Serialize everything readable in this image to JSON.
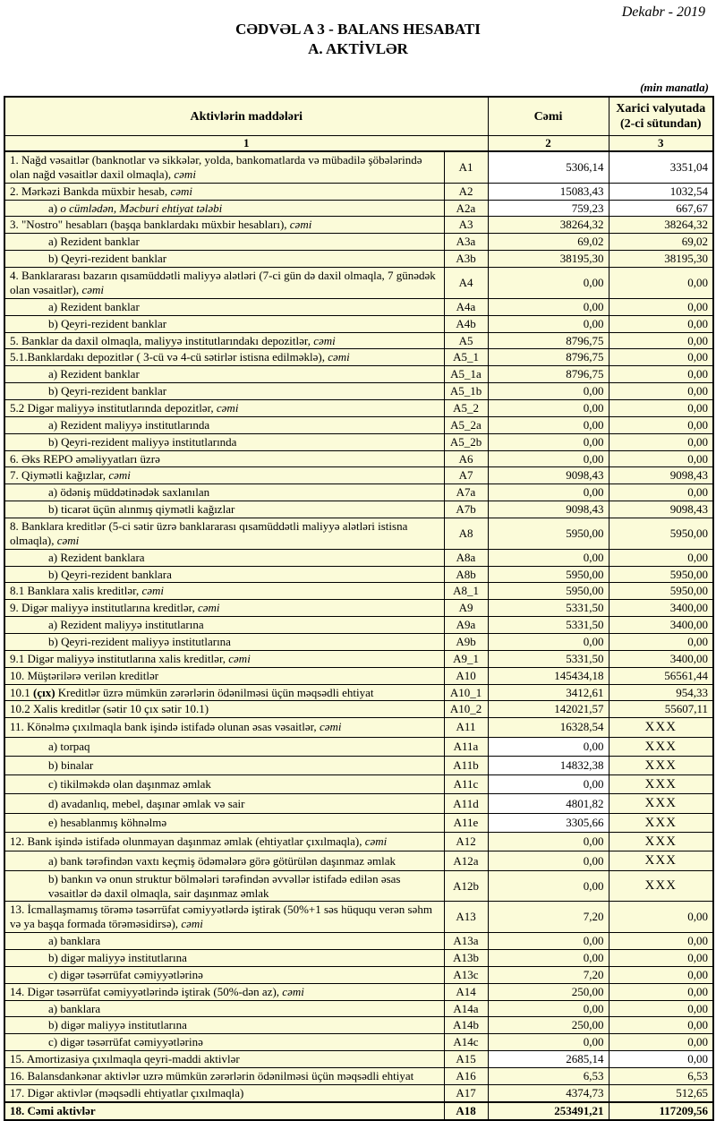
{
  "header": {
    "date": "Dekabr - 2019",
    "title_line1": "CƏDVƏL A 3 - BALANS HESABATI",
    "title_line2": "A. AKTİVLƏR",
    "unit_note": "(min manatla)"
  },
  "colors": {
    "cell_bg": "#FBFBD9",
    "white_bg": "#FFFFFF",
    "border": "#000000",
    "text": "#000000"
  },
  "table": {
    "columns": {
      "items": "Aktivlərin  maddələri",
      "cemi": "Cəmi",
      "xarici": "Xarici valyutada (2-ci sütundan)",
      "index_row": [
        "1",
        "2",
        "3"
      ]
    },
    "rows": [
      {
        "parts": [
          [
            "n",
            "1. Nağd vəsaitlər (banknotlar və sikkələr, yolda, bankomatlarda və mübadilə şöbələrində olan nağd vəsaitlər daxil olmaqla), "
          ],
          [
            "i",
            "cəmi"
          ]
        ],
        "code": "A1",
        "cemi": "5306,14",
        "xarici": "3351,04",
        "indent": false,
        "white": "both",
        "bold": false
      },
      {
        "parts": [
          [
            "n",
            "2. Mərkəzi Bankda müxbir hesab, "
          ],
          [
            "i",
            "cəmi"
          ]
        ],
        "code": "A2",
        "cemi": "15083,43",
        "xarici": "1032,54",
        "indent": false,
        "white": "both",
        "bold": false
      },
      {
        "parts": [
          [
            "n",
            "a) "
          ],
          [
            "i",
            "o cümlədən, Məcburi ehtiyat tələbi"
          ]
        ],
        "code": "A2a",
        "cemi": "759,23",
        "xarici": "667,67",
        "indent": true,
        "white": "both",
        "bold": false
      },
      {
        "parts": [
          [
            "n",
            "3. \"Nostro\" hesabları (başqa banklardakı müxbir hesabları), "
          ],
          [
            "i",
            "cəmi"
          ]
        ],
        "code": "A3",
        "cemi": "38264,32",
        "xarici": "38264,32",
        "indent": false,
        "white": null,
        "bold": false
      },
      {
        "parts": [
          [
            "n",
            "a) Rezident banklar"
          ]
        ],
        "code": "A3a",
        "cemi": "69,02",
        "xarici": "69,02",
        "indent": true,
        "white": null,
        "bold": false
      },
      {
        "parts": [
          [
            "n",
            "b) Qeyri-rezident banklar"
          ]
        ],
        "code": "A3b",
        "cemi": "38195,30",
        "xarici": "38195,30",
        "indent": true,
        "white": null,
        "bold": false
      },
      {
        "parts": [
          [
            "n",
            "4. Banklararası bazarın qısamüddətli maliyyə alətləri (7-ci gün də daxil olmaqla, 7 günədək olan vəsaitlər), "
          ],
          [
            "i",
            "cəmi"
          ]
        ],
        "code": "A4",
        "cemi": "0,00",
        "xarici": "0,00",
        "indent": false,
        "white": null,
        "bold": false
      },
      {
        "parts": [
          [
            "n",
            "a) Rezident banklar"
          ]
        ],
        "code": "A4a",
        "cemi": "0,00",
        "xarici": "0,00",
        "indent": true,
        "white": null,
        "bold": false
      },
      {
        "parts": [
          [
            "n",
            "b) Qeyri-rezident banklar"
          ]
        ],
        "code": "A4b",
        "cemi": "0,00",
        "xarici": "0,00",
        "indent": true,
        "white": null,
        "bold": false
      },
      {
        "parts": [
          [
            "n",
            "5. Banklar da daxil olmaqla, maliyyə institutlarındakı depozitlər, "
          ],
          [
            "i",
            "cəmi"
          ]
        ],
        "code": "A5",
        "cemi": "8796,75",
        "xarici": "0,00",
        "indent": false,
        "white": null,
        "bold": false
      },
      {
        "parts": [
          [
            "n",
            "5.1.Banklardakı depozitlər ( 3-cü və 4-cü sətirlər istisna edilməklə), "
          ],
          [
            "i",
            "cəmi"
          ]
        ],
        "code": "A5_1",
        "cemi": "8796,75",
        "xarici": "0,00",
        "indent": false,
        "white": null,
        "bold": false
      },
      {
        "parts": [
          [
            "n",
            "a) Rezident banklar"
          ]
        ],
        "code": "A5_1a",
        "cemi": "8796,75",
        "xarici": "0,00",
        "indent": true,
        "white": null,
        "bold": false
      },
      {
        "parts": [
          [
            "n",
            "b) Qeyri-rezident banklar"
          ]
        ],
        "code": "A5_1b",
        "cemi": "0,00",
        "xarici": "0,00",
        "indent": true,
        "white": null,
        "bold": false
      },
      {
        "parts": [
          [
            "n",
            "5.2 Digər maliyyə institutlarında depozitlər, "
          ],
          [
            "i",
            "cəmi"
          ]
        ],
        "code": "A5_2",
        "cemi": "0,00",
        "xarici": "0,00",
        "indent": false,
        "white": null,
        "bold": false
      },
      {
        "parts": [
          [
            "n",
            "a) Rezident maliyyə institutlarında"
          ]
        ],
        "code": "A5_2a",
        "cemi": "0,00",
        "xarici": "0,00",
        "indent": true,
        "white": null,
        "bold": false
      },
      {
        "parts": [
          [
            "n",
            "b) Qeyri-rezident maliyyə institutlarında"
          ]
        ],
        "code": "A5_2b",
        "cemi": "0,00",
        "xarici": "0,00",
        "indent": true,
        "white": null,
        "bold": false
      },
      {
        "parts": [
          [
            "n",
            "6. Əks REPO əməliyyatları üzrə"
          ]
        ],
        "code": "A6",
        "cemi": "0,00",
        "xarici": "0,00",
        "indent": false,
        "white": null,
        "bold": false
      },
      {
        "parts": [
          [
            "n",
            "7. Qiymətli kağızlar, "
          ],
          [
            "i",
            "cəmi"
          ]
        ],
        "code": "A7",
        "cemi": "9098,43",
        "xarici": "9098,43",
        "indent": false,
        "white": null,
        "bold": false
      },
      {
        "parts": [
          [
            "n",
            "a) ödəniş müddətinədək saxlanılan"
          ]
        ],
        "code": "A7a",
        "cemi": "0,00",
        "xarici": "0,00",
        "indent": true,
        "white": null,
        "bold": false
      },
      {
        "parts": [
          [
            "n",
            "b) ticarət üçün alınmış qiymətli kağızlar"
          ]
        ],
        "code": "A7b",
        "cemi": "9098,43",
        "xarici": "9098,43",
        "indent": true,
        "white": null,
        "bold": false
      },
      {
        "parts": [
          [
            "n",
            "8. Banklara kreditlər (5-ci sətir üzrə banklararası qısamüddətli maliyyə alətləri istisna olmaqla), "
          ],
          [
            "i",
            "cəmi"
          ]
        ],
        "code": "A8",
        "cemi": "5950,00",
        "xarici": "5950,00",
        "indent": false,
        "white": null,
        "bold": false
      },
      {
        "parts": [
          [
            "n",
            "a) Rezident banklara"
          ]
        ],
        "code": "A8a",
        "cemi": "0,00",
        "xarici": "0,00",
        "indent": true,
        "white": null,
        "bold": false
      },
      {
        "parts": [
          [
            "n",
            "b) Qeyri-rezident banklara"
          ]
        ],
        "code": "A8b",
        "cemi": "5950,00",
        "xarici": "5950,00",
        "indent": true,
        "white": null,
        "bold": false
      },
      {
        "parts": [
          [
            "n",
            "8.1 Banklara xalis kreditlər, "
          ],
          [
            "i",
            "cəmi"
          ]
        ],
        "code": "A8_1",
        "cemi": "5950,00",
        "xarici": "5950,00",
        "indent": false,
        "white": null,
        "bold": false
      },
      {
        "parts": [
          [
            "n",
            "9. Digər maliyyə institutlarına kreditlər, "
          ],
          [
            "i",
            "cəmi"
          ]
        ],
        "code": "A9",
        "cemi": "5331,50",
        "xarici": "3400,00",
        "indent": false,
        "white": null,
        "bold": false
      },
      {
        "parts": [
          [
            "n",
            "a) Rezident maliyyə institutlarına"
          ]
        ],
        "code": "A9a",
        "cemi": "5331,50",
        "xarici": "3400,00",
        "indent": true,
        "white": null,
        "bold": false
      },
      {
        "parts": [
          [
            "n",
            "b) Qeyri-rezident maliyyə institutlarına"
          ]
        ],
        "code": "A9b",
        "cemi": "0,00",
        "xarici": "0,00",
        "indent": true,
        "white": null,
        "bold": false
      },
      {
        "parts": [
          [
            "n",
            "9.1 Digər maliyyə institutlarına xalis kreditlər, "
          ],
          [
            "i",
            "cəmi"
          ]
        ],
        "code": "A9_1",
        "cemi": "5331,50",
        "xarici": "3400,00",
        "indent": false,
        "white": null,
        "bold": false
      },
      {
        "parts": [
          [
            "n",
            "10. Müştərilərə verilən kreditlər"
          ]
        ],
        "code": "A10",
        "cemi": "145434,18",
        "xarici": "56561,44",
        "indent": false,
        "white": null,
        "bold": false
      },
      {
        "parts": [
          [
            "n",
            "10.1 "
          ],
          [
            "b",
            "(çıx)"
          ],
          [
            "n",
            " Kreditlər üzrə mümkün zərərlərin ödənilməsi üçün məqsədli ehtiyat"
          ]
        ],
        "code": "A10_1",
        "cemi": "3412,61",
        "xarici": "954,33",
        "indent": false,
        "white": null,
        "bold": false
      },
      {
        "parts": [
          [
            "n",
            "10.2 Xalis kreditlər (sətir 10 çıx sətir 10.1)"
          ]
        ],
        "code": "A10_2",
        "cemi": "142021,57",
        "xarici": "55607,11",
        "indent": false,
        "white": null,
        "bold": false
      },
      {
        "parts": [
          [
            "n",
            "11. Könəlmə çıxılmaqla bank işində istifadə olunan əsas vəsaitlər, "
          ],
          [
            "i",
            "cəmi"
          ]
        ],
        "code": "A11",
        "cemi": "16328,54",
        "xarici": "XXX",
        "indent": false,
        "white": null,
        "bold": false
      },
      {
        "parts": [
          [
            "n",
            "a) torpaq"
          ]
        ],
        "code": "A11a",
        "cemi": "0,00",
        "xarici": "XXX",
        "indent": true,
        "white": "cemi",
        "bold": false
      },
      {
        "parts": [
          [
            "n",
            "b) binalar"
          ]
        ],
        "code": "A11b",
        "cemi": "14832,38",
        "xarici": "XXX",
        "indent": true,
        "white": "cemi",
        "bold": false
      },
      {
        "parts": [
          [
            "n",
            "c) tikilməkdə olan daşınmaz əmlak"
          ]
        ],
        "code": "A11c",
        "cemi": "0,00",
        "xarici": "XXX",
        "indent": true,
        "white": "cemi",
        "bold": false
      },
      {
        "parts": [
          [
            "n",
            "d) avadanlıq, mebel, daşınar əmlak və sair"
          ]
        ],
        "code": "A11d",
        "cemi": "4801,82",
        "xarici": "XXX",
        "indent": true,
        "white": "cemi",
        "bold": false
      },
      {
        "parts": [
          [
            "n",
            "e) hesablanmış köhnəlmə"
          ]
        ],
        "code": "A11e",
        "cemi": "3305,66",
        "xarici": "XXX",
        "indent": true,
        "white": "cemi",
        "bold": false
      },
      {
        "parts": [
          [
            "n",
            "12. Bank işində istifadə olunmayan daşınmaz əmlak (ehtiyatlar çıxılmaqla), "
          ],
          [
            "i",
            "cəmi"
          ]
        ],
        "code": "A12",
        "cemi": "0,00",
        "xarici": "XXX",
        "indent": false,
        "white": null,
        "bold": false
      },
      {
        "parts": [
          [
            "n",
            "a) bank tərəfindən vaxtı keçmiş ödəmələrə görə götürülən daşınmaz əmlak"
          ]
        ],
        "code": "A12a",
        "cemi": "0,00",
        "xarici": "XXX",
        "indent": true,
        "white": null,
        "bold": false
      },
      {
        "parts": [
          [
            "n",
            "b) bankın və onun struktur bölmələri tərəfindən əvvəllər istifadə edilən əsas vəsaitlər də daxil olmaqla, sair daşınmaz əmlak"
          ]
        ],
        "code": "A12b",
        "cemi": "0,00",
        "xarici": "XXX",
        "indent": true,
        "white": null,
        "bold": false
      },
      {
        "parts": [
          [
            "n",
            "13. İcmallaşmamış törəmə təsərrüfat cəmiyyətlərdə iştirak (50%+1 səs hüququ verən səhm və ya başqa formada törəməsidirsə), "
          ],
          [
            "i",
            "cəmi"
          ]
        ],
        "code": "A13",
        "cemi": "7,20",
        "xarici": "0,00",
        "indent": false,
        "white": null,
        "bold": false
      },
      {
        "parts": [
          [
            "n",
            "a) banklara"
          ]
        ],
        "code": "A13a",
        "cemi": "0,00",
        "xarici": "0,00",
        "indent": true,
        "white": null,
        "bold": false
      },
      {
        "parts": [
          [
            "n",
            "b) digər maliyyə institutlarına"
          ]
        ],
        "code": "A13b",
        "cemi": "0,00",
        "xarici": "0,00",
        "indent": true,
        "white": null,
        "bold": false
      },
      {
        "parts": [
          [
            "n",
            "c) digər təsərrüfat cəmiyyətlərinə"
          ]
        ],
        "code": "A13c",
        "cemi": "7,20",
        "xarici": "0,00",
        "indent": true,
        "white": null,
        "bold": false
      },
      {
        "parts": [
          [
            "n",
            "14. Digər təsərrüfat cəmiyyətlərində iştirak (50%-dən az), "
          ],
          [
            "i",
            "cəmi"
          ]
        ],
        "code": "A14",
        "cemi": "250,00",
        "xarici": "0,00",
        "indent": false,
        "white": null,
        "bold": false
      },
      {
        "parts": [
          [
            "n",
            "a) banklara"
          ]
        ],
        "code": "A14a",
        "cemi": "0,00",
        "xarici": "0,00",
        "indent": true,
        "white": null,
        "bold": false
      },
      {
        "parts": [
          [
            "n",
            "b) digər maliyyə institutlarına"
          ]
        ],
        "code": "A14b",
        "cemi": "250,00",
        "xarici": "0,00",
        "indent": true,
        "white": null,
        "bold": false
      },
      {
        "parts": [
          [
            "n",
            "c) digər təsərrüfat cəmiyyətlərinə"
          ]
        ],
        "code": "A14c",
        "cemi": "0,00",
        "xarici": "0,00",
        "indent": true,
        "white": null,
        "bold": false
      },
      {
        "parts": [
          [
            "n",
            "15. Amortizasiya çıxılmaqla qeyri-maddi aktivlər"
          ]
        ],
        "code": "A15",
        "cemi": "2685,14",
        "xarici": "0,00",
        "indent": false,
        "white": "both",
        "bold": false
      },
      {
        "parts": [
          [
            "n",
            "16. Balansdankənar aktivlər uzrə mümkün zərərlərin ödənilməsi üçün məqsədli ehtiyat"
          ]
        ],
        "code": "A16",
        "cemi": "6,53",
        "xarici": "6,53",
        "indent": false,
        "white": null,
        "bold": false
      },
      {
        "parts": [
          [
            "n",
            "17. Digər aktivlər (məqsədli ehtiyatlar çıxılmaqla)"
          ]
        ],
        "code": "A17",
        "cemi": "4374,73",
        "xarici": "512,65",
        "indent": false,
        "white": null,
        "bold": false
      },
      {
        "parts": [
          [
            "b",
            "18. Cəmi aktivlər"
          ]
        ],
        "code": "A18",
        "cemi": "253491,21",
        "xarici": "117209,56",
        "indent": false,
        "white": null,
        "bold": true
      }
    ]
  }
}
